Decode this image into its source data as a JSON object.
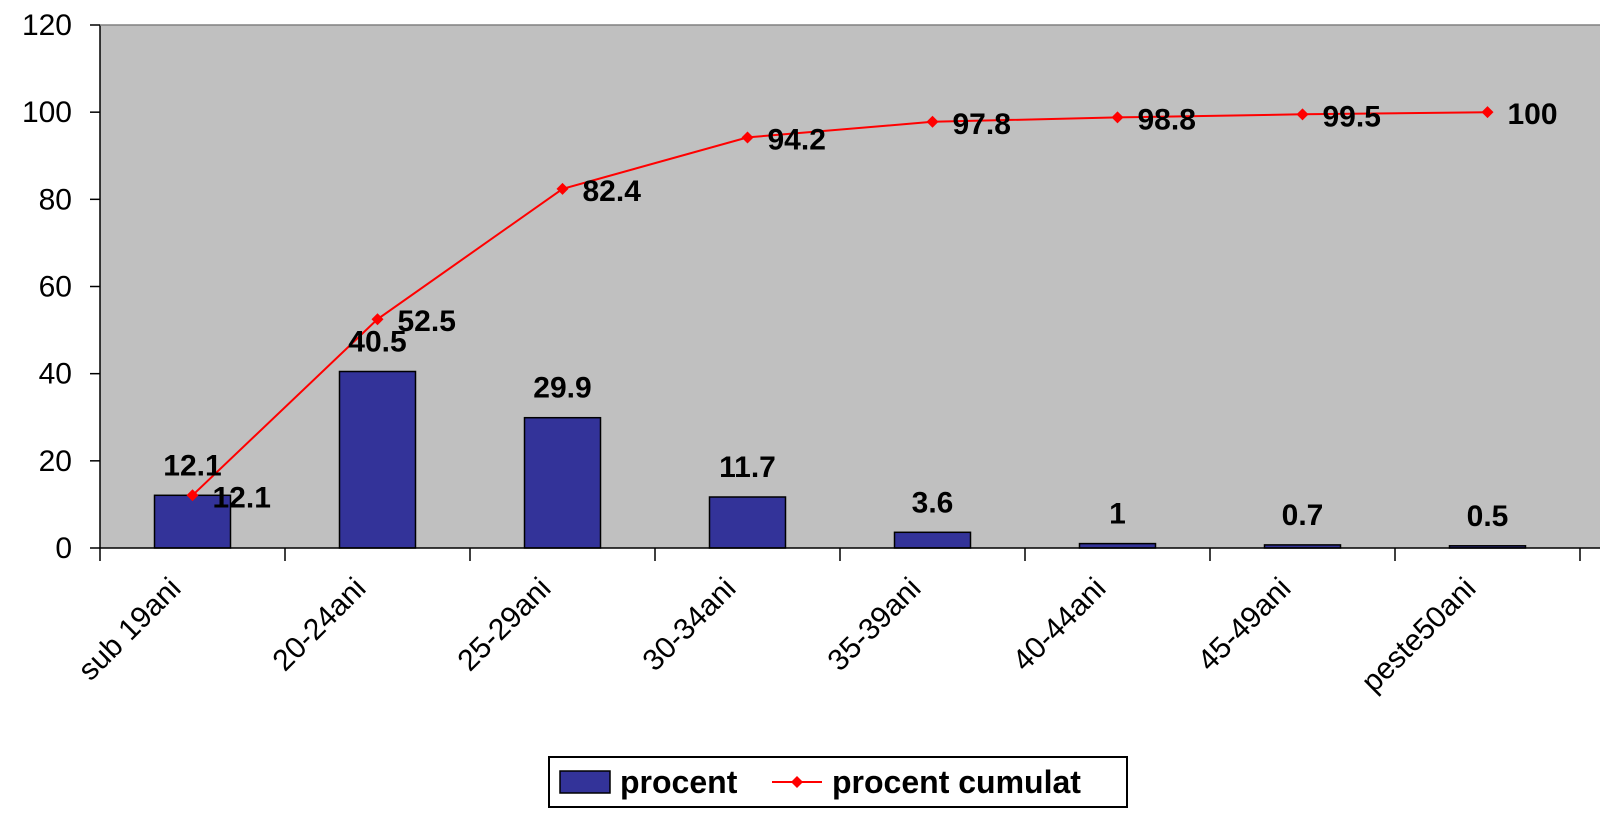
{
  "chart_data": {
    "type": "bar",
    "categories": [
      "sub 19ani",
      "20-24ani",
      "25-29ani",
      "30-34ani",
      "35-39ani",
      "40-44ani",
      "45-49ani",
      "peste50ani"
    ],
    "series": [
      {
        "name": "procent",
        "type": "bar",
        "values": [
          12.1,
          40.5,
          29.9,
          11.7,
          3.6,
          1,
          0.7,
          0.5
        ],
        "value_labels": [
          "12.1",
          "40.5",
          "29.9",
          "11.7",
          "3.6",
          "1",
          "0.7",
          "0.5"
        ]
      },
      {
        "name": "procent cumulat",
        "type": "line",
        "values": [
          12.1,
          52.5,
          82.4,
          94.2,
          97.8,
          98.8,
          99.5,
          100
        ],
        "value_labels": [
          "12.1",
          "52.5",
          "82.4",
          "94.2",
          "97.8",
          "98.8",
          "99.5",
          "100"
        ]
      }
    ],
    "ylim": [
      0,
      120
    ],
    "yticks": [
      "0",
      "20",
      "40",
      "60",
      "80",
      "100",
      "120"
    ],
    "grid": false,
    "legend_position": "bottom",
    "colors": {
      "plot_background": "#c0c0c0",
      "bar_fill": "#333399",
      "line": "#ff0000"
    }
  }
}
